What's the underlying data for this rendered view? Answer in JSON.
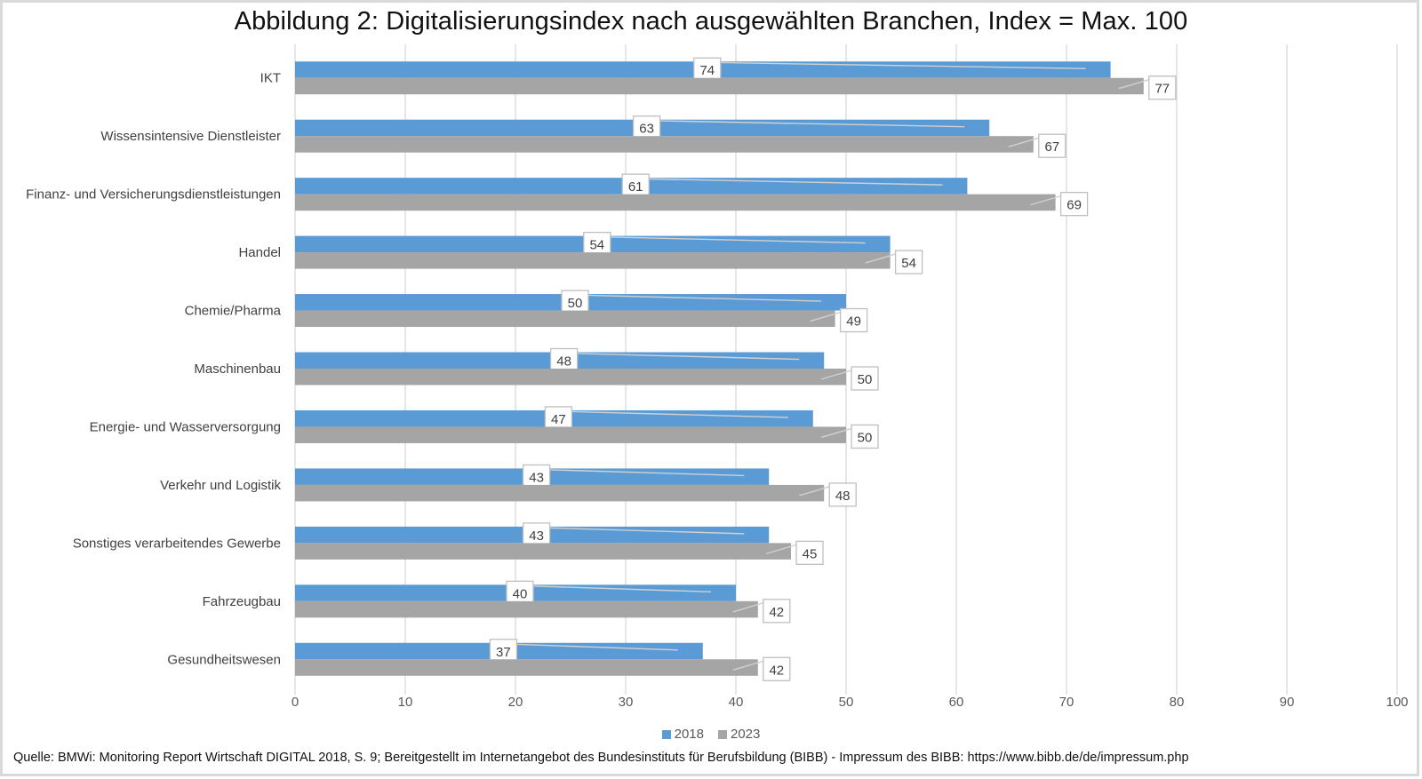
{
  "chart_data": {
    "type": "bar",
    "orientation": "horizontal",
    "title": "Abbildung 2: Digitalisierungsindex nach ausgewählten Branchen, Index = Max. 100",
    "xlabel": "",
    "ylabel": "",
    "xlim": [
      0,
      100
    ],
    "xticks": [
      0,
      10,
      20,
      30,
      40,
      50,
      60,
      70,
      80,
      90,
      100
    ],
    "grid": true,
    "legend_position": "bottom",
    "categories": [
      "IKT",
      "Wissensintensive Dienstleister",
      "Finanz- und Versicherungsdienstleistungen",
      "Handel",
      "Chemie/Pharma",
      "Maschinenbau",
      "Energie- und Wasserversorgung",
      "Verkehr und Logistik",
      "Sonstiges verarbeitendes Gewerbe",
      "Fahrzeugbau",
      "Gesundheitswesen"
    ],
    "series": [
      {
        "name": "2018",
        "color": "#5b9bd5",
        "values": [
          74,
          63,
          61,
          54,
          50,
          48,
          47,
          43,
          43,
          40,
          37
        ]
      },
      {
        "name": "2023",
        "color": "#a5a5a5",
        "values": [
          77,
          67,
          69,
          54,
          49,
          50,
          50,
          48,
          45,
          42,
          42
        ]
      }
    ]
  },
  "source": "Quelle: BMWi: Monitoring Report Wirtschaft DIGITAL 2018, S. 9; Bereitgestellt im Internetangebot des Bundesinstituts für Berufsbildung (BIBB) - Impressum des BIBB: https://www.bibb.de/de/impressum.php"
}
